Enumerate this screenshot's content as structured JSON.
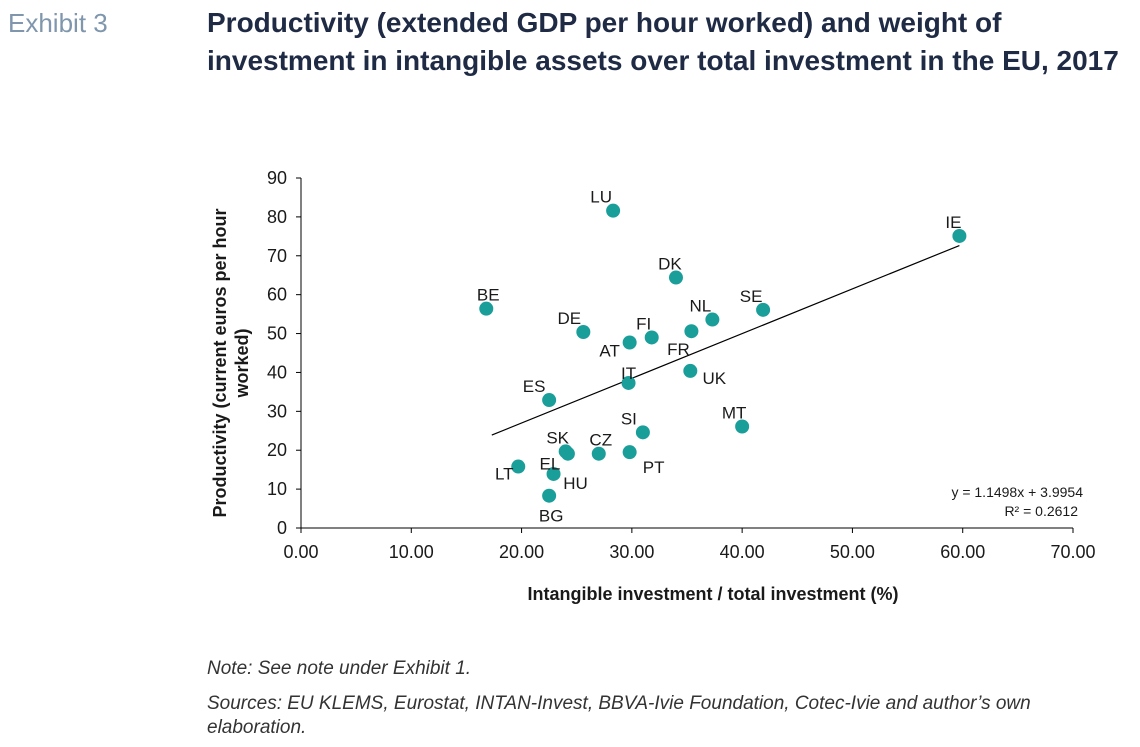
{
  "exhibit_label": "Exhibit 3",
  "title": "Productivity (extended GDP per hour worked) and weight of investment in intangible assets over total investment in the EU, 2017",
  "note": "Note: See note under Exhibit 1.",
  "sources": "Sources: EU KLEMS, Eurostat, INTAN-Invest, BBVA-Ivie Foundation, Cotec-Ivie and author’s own elaboration.",
  "colors": {
    "marker": "#1a9e9a",
    "text": "#1a1a1a",
    "title": "#1f2a44",
    "exhibit": "#7f96ad"
  },
  "chart_data": {
    "type": "scatter",
    "xlabel": "Intangible investment / total investment (%)",
    "ylabel": "Productivity (current euros per hour worked)",
    "xlim": [
      0,
      70
    ],
    "ylim": [
      0,
      90
    ],
    "xticks": [
      "0.00",
      "10.00",
      "20.00",
      "30.00",
      "40.00",
      "50.00",
      "60.00",
      "70.00"
    ],
    "yticks": [
      "0",
      "10",
      "20",
      "30",
      "40",
      "50",
      "60",
      "70",
      "80",
      "90"
    ],
    "grid": false,
    "points": [
      {
        "label": "LU",
        "x": 28.3,
        "y": 81.6
      },
      {
        "label": "IE",
        "x": 59.7,
        "y": 75.1
      },
      {
        "label": "DK",
        "x": 34.0,
        "y": 64.4
      },
      {
        "label": "BE",
        "x": 16.8,
        "y": 56.4
      },
      {
        "label": "SE",
        "x": 41.9,
        "y": 56.1
      },
      {
        "label": "NL",
        "x": 37.3,
        "y": 53.6
      },
      {
        "label": "DE",
        "x": 25.6,
        "y": 50.4
      },
      {
        "label": "FR",
        "x": 35.4,
        "y": 50.6
      },
      {
        "label": "FI",
        "x": 31.8,
        "y": 49.0
      },
      {
        "label": "AT",
        "x": 29.8,
        "y": 47.7
      },
      {
        "label": "UK",
        "x": 35.3,
        "y": 40.4
      },
      {
        "label": "IT",
        "x": 29.7,
        "y": 37.3
      },
      {
        "label": "ES",
        "x": 22.5,
        "y": 32.9
      },
      {
        "label": "MT",
        "x": 40.0,
        "y": 26.1
      },
      {
        "label": "SI",
        "x": 31.0,
        "y": 24.6
      },
      {
        "label": "SK",
        "x": 24.0,
        "y": 19.7
      },
      {
        "label": "EL",
        "x": 24.2,
        "y": 19.1
      },
      {
        "label": "CZ",
        "x": 27.0,
        "y": 19.1
      },
      {
        "label": "PT",
        "x": 29.8,
        "y": 19.5
      },
      {
        "label": "LT",
        "x": 19.7,
        "y": 15.8
      },
      {
        "label": "HU",
        "x": 22.9,
        "y": 13.9
      },
      {
        "label": "BG",
        "x": 22.5,
        "y": 8.3
      }
    ],
    "trendline": {
      "slope": 1.1498,
      "intercept": 3.9954,
      "x_from": 17.3,
      "x_to": 59.7,
      "equation": "y = 1.1498x + 3.9954",
      "r2": "R² = 0.2612"
    }
  }
}
